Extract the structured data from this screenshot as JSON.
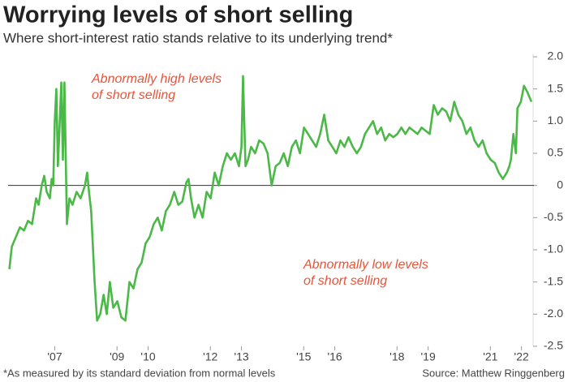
{
  "chart_data": {
    "type": "line",
    "title": "Worrying levels of short selling",
    "subtitle": "Where short-interest ratio stands relative to its underlying trend*",
    "footnote": "*As measured by its standard deviation from normal levels",
    "source": "Source: Matthew Ringgenberg",
    "annotations": [
      {
        "lines": [
          "Abnormally high levels",
          "of short selling"
        ]
      },
      {
        "lines": [
          "Abnormally low levels",
          "of short selling"
        ]
      }
    ],
    "xlim": [
      2005.5,
      2022.4
    ],
    "xticks": [
      {
        "value": 2007,
        "label": "'07"
      },
      {
        "value": 2009,
        "label": "'09"
      },
      {
        "value": 2010,
        "label": "'10"
      },
      {
        "value": 2012,
        "label": "'12"
      },
      {
        "value": 2013,
        "label": "'13"
      },
      {
        "value": 2015,
        "label": "'15"
      },
      {
        "value": 2016,
        "label": "'16"
      },
      {
        "value": 2018,
        "label": "'18"
      },
      {
        "value": 2019,
        "label": "'19"
      },
      {
        "value": 2021,
        "label": "'21"
      },
      {
        "value": 2022,
        "label": "'22"
      }
    ],
    "ylim": [
      -2.5,
      2.0
    ],
    "yticks": [
      {
        "value": 2.0,
        "label": "2.0"
      },
      1.5,
      {
        "value": 1.0,
        "label": "1.0"
      },
      0.5,
      0,
      -0.5,
      {
        "value": -1.0,
        "label": "-1.0"
      },
      -1.5,
      {
        "value": -2.0,
        "label": "-2.0"
      },
      -2.5
    ],
    "color": "#4cb848",
    "x": [
      2005.54,
      2005.62,
      2005.75,
      2005.88,
      2006.01,
      2006.14,
      2006.27,
      2006.4,
      2006.48,
      2006.58,
      2006.66,
      2006.74,
      2006.84,
      2006.9,
      2006.95,
      2007.0,
      2007.05,
      2007.1,
      2007.16,
      2007.21,
      2007.26,
      2007.31,
      2007.39,
      2007.47,
      2007.57,
      2007.7,
      2007.83,
      2007.97,
      2008.04,
      2008.1,
      2008.17,
      2008.28,
      2008.36,
      2008.46,
      2008.57,
      2008.67,
      2008.77,
      2008.88,
      2009.01,
      2009.14,
      2009.27,
      2009.4,
      2009.53,
      2009.66,
      2009.79,
      2009.92,
      2010.05,
      2010.18,
      2010.31,
      2010.44,
      2010.57,
      2010.7,
      2010.84,
      2010.97,
      2011.1,
      2011.23,
      2011.3,
      2011.38,
      2011.49,
      2011.62,
      2011.75,
      2011.88,
      2012.01,
      2012.14,
      2012.27,
      2012.4,
      2012.53,
      2012.66,
      2012.79,
      2012.92,
      2013.0,
      2013.05,
      2013.13,
      2013.21,
      2013.31,
      2013.44,
      2013.57,
      2013.71,
      2013.84,
      2013.97,
      2014.1,
      2014.23,
      2014.36,
      2014.49,
      2014.62,
      2014.75,
      2014.88,
      2015.01,
      2015.14,
      2015.27,
      2015.4,
      2015.53,
      2015.66,
      2015.79,
      2015.92,
      2016.05,
      2016.18,
      2016.31,
      2016.44,
      2016.58,
      2016.71,
      2016.84,
      2016.97,
      2017.1,
      2017.23,
      2017.36,
      2017.49,
      2017.62,
      2017.75,
      2017.88,
      2018.01,
      2018.14,
      2018.27,
      2018.4,
      2018.53,
      2018.66,
      2018.79,
      2018.92,
      2019.05,
      2019.18,
      2019.31,
      2019.45,
      2019.58,
      2019.71,
      2019.84,
      2019.97,
      2020.1,
      2020.23,
      2020.36,
      2020.49,
      2020.62,
      2020.75,
      2020.88,
      2021.01,
      2021.14,
      2021.27,
      2021.4,
      2021.53,
      2021.61,
      2021.66,
      2021.74,
      2021.82,
      2021.87,
      2021.98,
      2022.08,
      2022.19,
      2022.32
    ],
    "values": [
      -1.3,
      -0.95,
      -0.8,
      -0.65,
      -0.7,
      -0.55,
      -0.6,
      -0.2,
      -0.3,
      0,
      0.15,
      -0.1,
      -0.2,
      0.1,
      0.0,
      1.0,
      1.5,
      0.3,
      1.0,
      1.6,
      0.4,
      1.6,
      -0.6,
      -0.2,
      -0.3,
      -0.1,
      -0.2,
      0.0,
      0.2,
      -0.1,
      -0.4,
      -1.5,
      -2.1,
      -2.0,
      -1.7,
      -2.0,
      -1.5,
      -1.9,
      -1.8,
      -2.05,
      -2.1,
      -1.5,
      -1.6,
      -1.3,
      -1.2,
      -0.9,
      -0.8,
      -0.6,
      -0.5,
      -0.7,
      -0.4,
      -0.3,
      -0.1,
      -0.3,
      -0.25,
      0.05,
      0.1,
      -0.2,
      -0.5,
      -0.3,
      -0.5,
      -0.1,
      -0.2,
      0.2,
      0.0,
      0.3,
      0.5,
      0.4,
      0.5,
      0.3,
      0.6,
      1.7,
      0.3,
      0.4,
      0.6,
      0.5,
      0.7,
      0.65,
      0.5,
      0.0,
      0.3,
      0.35,
      0.5,
      0.3,
      0.6,
      0.7,
      0.5,
      0.9,
      0.8,
      0.7,
      0.6,
      0.8,
      1.1,
      0.7,
      0.6,
      0.5,
      0.7,
      0.6,
      0.75,
      0.6,
      0.5,
      0.6,
      0.8,
      0.9,
      1.0,
      0.8,
      0.9,
      0.7,
      0.8,
      0.75,
      0.8,
      0.9,
      0.8,
      0.9,
      0.85,
      0.8,
      0.9,
      0.85,
      0.8,
      1.25,
      1.1,
      1.2,
      1.15,
      1.0,
      1.3,
      1.1,
      1.0,
      0.8,
      0.9,
      0.7,
      0.6,
      0.7,
      0.5,
      0.4,
      0.35,
      0.2,
      0.1,
      0.2,
      0.3,
      0.4,
      0.8,
      0.5,
      1.2,
      1.3,
      1.55,
      1.45,
      1.3
    ]
  }
}
